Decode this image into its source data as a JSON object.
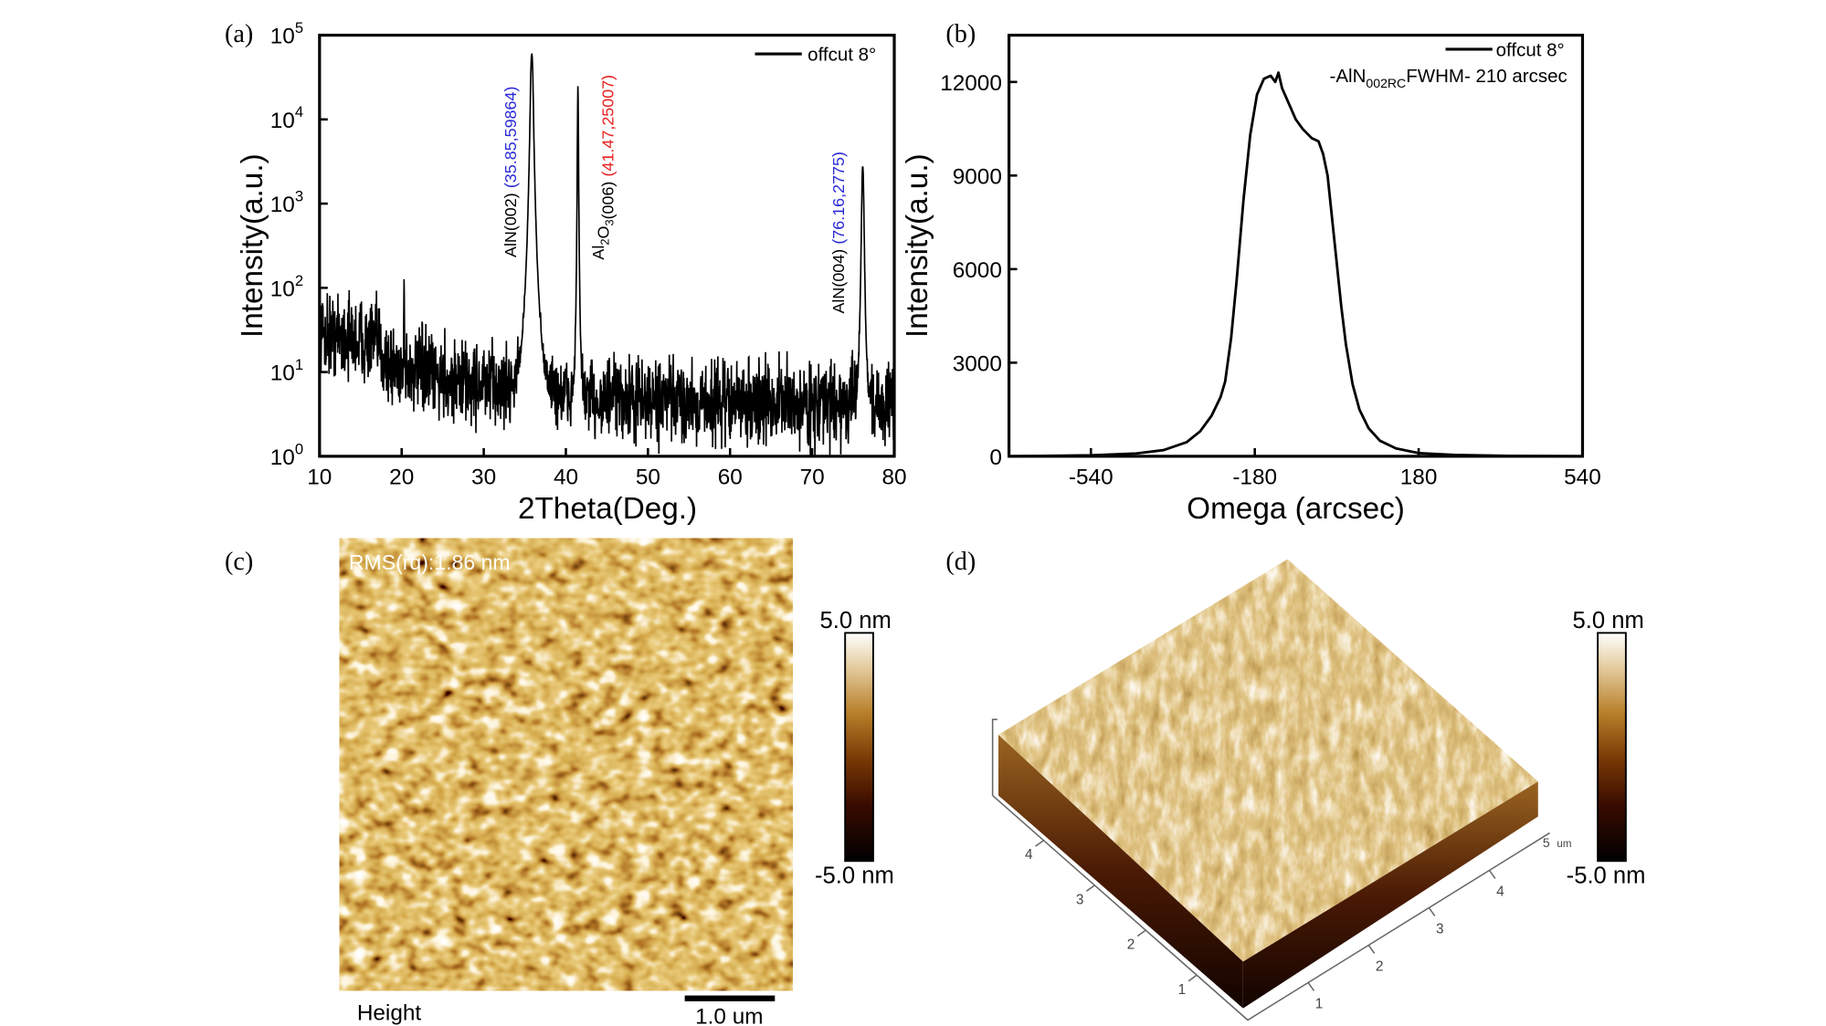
{
  "panels": {
    "a": {
      "label": "(a)"
    },
    "b": {
      "label": "(b)"
    },
    "c": {
      "label": "(c)",
      "rms_text": "RMS(rq):1.86 nm",
      "channel_label": "Height",
      "scale_bar_label": "1.0 um",
      "colorbar_max": "5.0 nm",
      "colorbar_min": "-5.0 nm"
    },
    "d": {
      "label": "(d)",
      "colorbar_max": "5.0 nm",
      "colorbar_min": "-5.0 nm",
      "axis_ticks_left": [
        "1",
        "2",
        "3",
        "4"
      ],
      "axis_ticks_right": [
        "1",
        "2",
        "3",
        "4"
      ],
      "axis_end_label": "5",
      "axis_unit": "um"
    }
  },
  "colormap": [
    "#000000",
    "#4a1200",
    "#8a4a08",
    "#c08a30",
    "#e8d2a8",
    "#ffffff"
  ],
  "chart_data": [
    {
      "type": "line",
      "panel": "a",
      "xlabel": "2Theta(Deg.)",
      "ylabel": "Intensity(a.u.)",
      "xlim": [
        10,
        80
      ],
      "ylim": [
        1,
        100000
      ],
      "yscale": "log",
      "xticks": [
        "10",
        "20",
        "30",
        "40",
        "50",
        "60",
        "70",
        "80"
      ],
      "yticks": [
        {
          "base": "10",
          "exp": "0"
        },
        {
          "base": "10",
          "exp": "1"
        },
        {
          "base": "10",
          "exp": "2"
        },
        {
          "base": "10",
          "exp": "3"
        },
        {
          "base": "10",
          "exp": "4"
        },
        {
          "base": "10",
          "exp": "5"
        }
      ],
      "legend": {
        "position": "top-right",
        "entries": [
          "offcut 8°"
        ]
      },
      "series": [
        {
          "name": "offcut 8°",
          "color": "#000000",
          "background": [
            [
              10,
              30
            ],
            [
              14,
              25
            ],
            [
              17,
              22
            ],
            [
              18.5,
              12
            ],
            [
              22,
              10
            ],
            [
              26,
              8
            ],
            [
              30,
              7
            ],
            [
              34,
              6
            ],
            [
              40,
              5
            ],
            [
              50,
              4.5
            ],
            [
              80,
              4
            ]
          ],
          "peaks": [
            {
              "x": 20.3,
              "y": 110
            },
            {
              "x": 35.85,
              "y": 59864
            },
            {
              "x": 41.47,
              "y": 25007
            },
            {
              "x": 76.16,
              "y": 2775
            }
          ]
        }
      ],
      "annotations": [
        {
          "name": "AlN(002)",
          "parts": [
            {
              "t": "AlN(002)",
              "sub": ""
            }
          ],
          "value": "(35.85,59864)",
          "value_color": "#2a2ad8"
        },
        {
          "name": "Al2O3(006)",
          "parts": [
            {
              "t": "Al",
              "sub": "2"
            },
            {
              "t": "O",
              "sub": "3"
            },
            {
              "t": "(006)",
              "sub": ""
            }
          ],
          "value": "(41.47,25007)",
          "value_color": "#e82020"
        },
        {
          "name": "AlN(004)",
          "parts": [
            {
              "t": "AlN(004)",
              "sub": ""
            }
          ],
          "value": "(76.16,2775)",
          "value_color": "#2a2ad8"
        }
      ]
    },
    {
      "type": "line",
      "panel": "b",
      "xlabel": "Omega (arcsec)",
      "ylabel": "Intensity(a.u.)",
      "xlim": [
        -720,
        540
      ],
      "ylim": [
        0,
        13500
      ],
      "xticks": [
        "-540",
        "-180",
        "180",
        "540"
      ],
      "yticks": [
        "0",
        "3000",
        "6000",
        "9000",
        "12000"
      ],
      "legend": {
        "position": "top-right",
        "entries": [
          "offcut 8°"
        ]
      },
      "annotation": {
        "prefix": "-AlN",
        "sub": "002RC",
        "suffix": "FWHM- 210 arcsec"
      },
      "series": [
        {
          "name": "offcut 8°",
          "color": "#000000",
          "x": [
            -720,
            -540,
            -440,
            -380,
            -330,
            -300,
            -275,
            -255,
            -245,
            -232,
            -220,
            -205,
            -190,
            -175,
            -160,
            -145,
            -135,
            -128,
            -120,
            -105,
            -90,
            -75,
            -55,
            -40,
            -30,
            -20,
            -10,
            0,
            10,
            20,
            35,
            50,
            70,
            95,
            130,
            180,
            260,
            380,
            540
          ],
          "y": [
            0,
            30,
            90,
            200,
            450,
            800,
            1300,
            1900,
            2400,
            3800,
            5600,
            8200,
            10300,
            11600,
            12100,
            12200,
            12000,
            12300,
            11800,
            11300,
            10800,
            10500,
            10200,
            10100,
            9700,
            9000,
            7600,
            6200,
            4800,
            3600,
            2300,
            1500,
            900,
            500,
            250,
            100,
            40,
            10,
            0
          ]
        }
      ]
    }
  ]
}
